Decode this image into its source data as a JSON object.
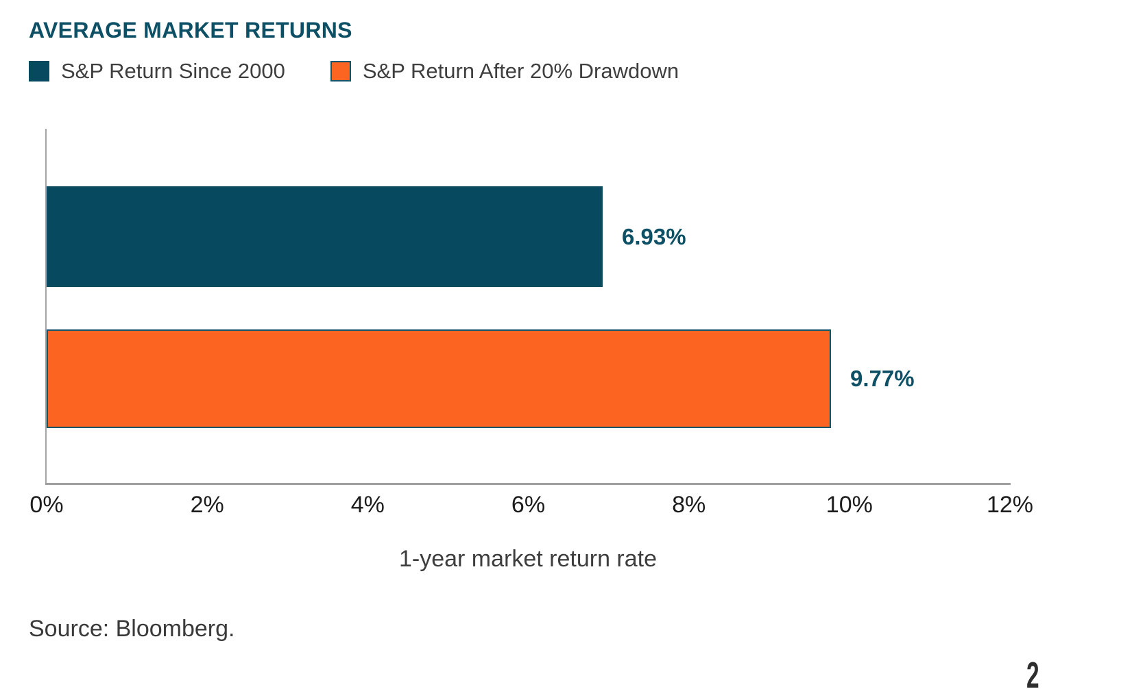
{
  "title": "AVERAGE MARKET RETURNS",
  "legend": [
    {
      "label": "S&P Return Since 2000",
      "color": "#07495E"
    },
    {
      "label": "S&P Return After 20% Drawdown",
      "color": "#FB6421"
    }
  ],
  "chart_data": {
    "type": "bar",
    "orientation": "horizontal",
    "title": "AVERAGE MARKET RETURNS",
    "series": [
      {
        "name": "S&P Return Since 2000",
        "value": 6.93,
        "label": "6.93%",
        "color": "#07495E"
      },
      {
        "name": "S&P Return After 20% Drawdown",
        "value": 9.77,
        "label": "9.77%",
        "color": "#FB6421"
      }
    ],
    "xlabel": "1-year market return rate",
    "x_ticks": [
      "0%",
      "2%",
      "4%",
      "6%",
      "8%",
      "10%",
      "12%"
    ],
    "xlim": [
      0,
      12
    ],
    "grid": false,
    "legend_position": "top-left"
  },
  "source": "Source: Bloomberg.",
  "page_number": "2",
  "colors": {
    "bar_teal": "#07495E",
    "bar_orange": "#FB6421",
    "bar_border": "#12566B",
    "teal_text": "#0D4F65",
    "legend_text": "#3E3E3E",
    "tick_text": "#1C1C1C",
    "axis_line": "#A0A0A0",
    "source_text": "#3A3A3A"
  }
}
